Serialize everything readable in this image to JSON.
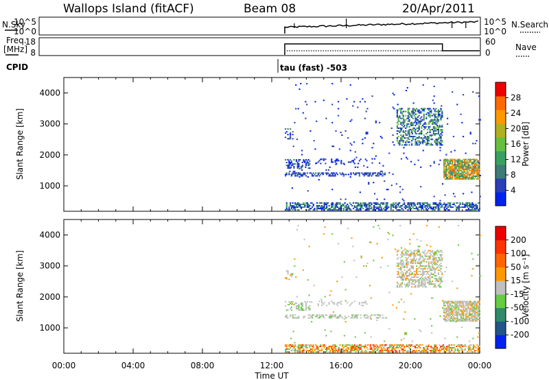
{
  "header": {
    "station": "Wallops Island (fitACF)",
    "beam": "Beam 08",
    "date": "20/Apr/2011"
  },
  "summary": {
    "nsky_label": "N.Sky",
    "nsky_ticks": [
      "10^5",
      "10^0"
    ],
    "nsearch_label": "N.Search",
    "nsearch_ticks": [
      "10^5",
      "10^0"
    ],
    "freq_label_1": "Freq.",
    "freq_label_2": "[MHz]",
    "freq_ticks": [
      "18",
      "8"
    ],
    "nave_label": "Nave",
    "nave_ticks": [
      "60",
      "0"
    ],
    "cpid_label": "CPID",
    "cpid_text": "tau (fast) -503"
  },
  "colors": {
    "power_scale": [
      "#0022ee",
      "#2a3fb8",
      "#3d7a78",
      "#3aa060",
      "#66c040",
      "#b0b020",
      "#ff9900",
      "#ff6a00",
      "#ee0000"
    ],
    "velocity_scale": [
      "#0022ee",
      "#225588",
      "#2f8a6a",
      "#66cc44",
      "#c0c0c0",
      "#ff9900",
      "#ff6600",
      "#ff3300",
      "#ee0000"
    ]
  },
  "chart_data": [
    {
      "type": "heatmap",
      "name": "power",
      "ylabel": "Slant Range [km]",
      "yticks": [
        "1000",
        "2000",
        "3000",
        "4000"
      ],
      "ylim": [
        180,
        4500
      ],
      "colorbar_label": "Power [dB]",
      "colorbar_ticks": [
        "4",
        "8",
        "12",
        "16",
        "20",
        "24",
        "28"
      ],
      "colorbar_range": [
        0,
        30
      ],
      "xlim_hours": [
        0,
        24
      ],
      "data_start_hour": 12.75,
      "echo_regions": [
        {
          "t_start": 12.7,
          "t_end": 24.0,
          "range_km": [
            200,
            420
          ],
          "level": "low"
        },
        {
          "t_start": 12.7,
          "t_end": 18.5,
          "range_km": [
            1300,
            1850
          ],
          "level": "low"
        },
        {
          "t_start": 19.0,
          "t_end": 21.8,
          "range_km": [
            2400,
            3600
          ],
          "level": "mid"
        },
        {
          "t_start": 21.8,
          "t_end": 24.0,
          "range_km": [
            1300,
            1850
          ],
          "level": "high"
        }
      ]
    },
    {
      "type": "heatmap",
      "name": "velocity",
      "ylabel": "Slant Range [km]",
      "yticks": [
        "1000",
        "2000",
        "3000",
        "4000"
      ],
      "ylim": [
        180,
        4500
      ],
      "colorbar_label": "Velocity [m s⁻¹]",
      "colorbar_ticks": [
        "200",
        "100",
        "50",
        "15",
        "-15",
        "-50",
        "-100",
        "-200"
      ],
      "colorbar_range": [
        -250,
        250
      ],
      "xlabel": "Time UT",
      "xticks": [
        "00:00",
        "04:00",
        "08:00",
        "12:00",
        "16:00",
        "20:00",
        "00:00"
      ],
      "xlim_hours": [
        0,
        24
      ]
    }
  ]
}
